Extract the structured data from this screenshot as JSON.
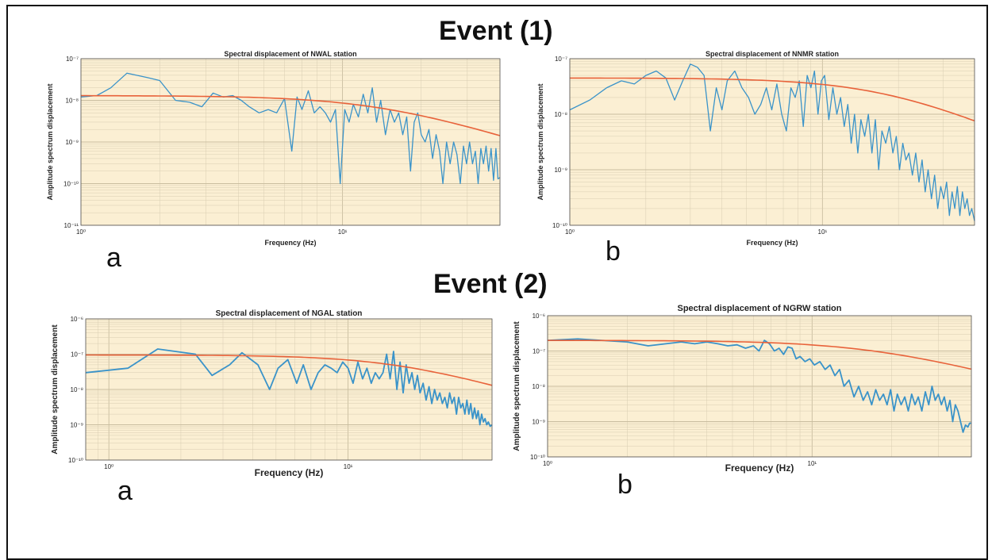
{
  "figure": {
    "event1_title": "Event (1)",
    "event2_title": "Event (2)",
    "labels": [
      "a",
      "b",
      "a",
      "b"
    ]
  },
  "colors": {
    "plot_background": "#fbefd3",
    "observed_spectrum": "#3a93c9",
    "model_fit": "#e8623a",
    "grid": "#d8cdb2"
  },
  "chart_data": [
    {
      "type": "line",
      "title": "Spectral displacement of NWAL station",
      "xlabel": "Frequency (Hz)",
      "ylabel": "Amplitude spectrum displacement",
      "xscale": "log",
      "yscale": "log",
      "xlim": [
        1,
        40
      ],
      "ylim": [
        1e-11,
        1e-07
      ],
      "xticks": [
        {
          "v": 1,
          "label": "10⁰"
        },
        {
          "v": 10,
          "label": "10¹"
        }
      ],
      "yticks": [
        {
          "v": 1e-11,
          "label": "10⁻¹¹"
        },
        {
          "v": 1e-10,
          "label": "10⁻¹⁰"
        },
        {
          "v": 1e-09,
          "label": "10⁻⁹"
        },
        {
          "v": 1e-08,
          "label": "10⁻⁸"
        },
        {
          "v": 1e-07,
          "label": "10⁻⁷"
        }
      ],
      "grid": true,
      "series": [
        {
          "role": "observed",
          "x": [
            1,
            1.15,
            1.3,
            1.5,
            1.8,
            2,
            2.3,
            2.6,
            2.9,
            3.2,
            3.5,
            3.8,
            4.1,
            4.4,
            4.8,
            5.2,
            5.6,
            6,
            6.4,
            6.7,
            7,
            7.4,
            7.8,
            8.2,
            8.6,
            9,
            9.4,
            9.8,
            10.2,
            10.6,
            11,
            11.5,
            12,
            12.5,
            13,
            13.5,
            14,
            14.6,
            15.2,
            15.8,
            16.4,
            17,
            17.6,
            18.2,
            18.8,
            19.4,
            20,
            20.7,
            21.4,
            22.1,
            22.8,
            23.5,
            24.2,
            25,
            25.8,
            26.6,
            27.4,
            28.2,
            29,
            29.8,
            30.6,
            31.4,
            32.2,
            33,
            33.8,
            34.6,
            35.4,
            36.2,
            37,
            37.8,
            38.6,
            39.3,
            40
          ],
          "y": [
            1.2e-08,
            1.3e-08,
            2e-08,
            4.5e-08,
            3.5e-08,
            3e-08,
            1e-08,
            9e-09,
            7e-09,
            1.5e-08,
            1.2e-08,
            1.3e-08,
            1e-08,
            7e-09,
            5e-09,
            6e-09,
            5e-09,
            1.1e-08,
            6e-10,
            1.2e-08,
            6e-09,
            1.7e-08,
            5e-09,
            7e-09,
            5e-09,
            3e-09,
            6e-09,
            1e-10,
            6e-09,
            3e-09,
            8e-09,
            4e-09,
            1.4e-08,
            5e-09,
            2e-08,
            3e-09,
            1e-08,
            1.5e-09,
            6e-09,
            3e-09,
            5e-09,
            1.5e-09,
            4e-09,
            2e-10,
            3e-09,
            5e-09,
            1.5e-09,
            1e-09,
            2e-09,
            4e-10,
            1.5e-09,
            6e-10,
            1e-10,
            1e-09,
            3e-10,
            1e-09,
            5e-10,
            1e-10,
            8e-10,
            3e-10,
            1e-09,
            3e-10,
            6e-10,
            1e-10,
            7e-10,
            3e-10,
            8e-10,
            2e-10,
            7e-10,
            1.2e-10,
            7e-10,
            1.3e-10,
            1.4e-10
          ]
        },
        {
          "role": "model fit",
          "omega0": 1.3e-08,
          "fc": 14,
          "xmin": 1,
          "xmax": 40
        }
      ]
    },
    {
      "type": "line",
      "title": "Spectral displacement of NNMR station",
      "xlabel": "Frequency (Hz)",
      "ylabel": "Amplitude spectrum displacement",
      "xscale": "log",
      "yscale": "log",
      "xlim": [
        1,
        40
      ],
      "ylim": [
        1e-10,
        1e-07
      ],
      "xticks": [
        {
          "v": 1,
          "label": "10⁰"
        },
        {
          "v": 10,
          "label": "10¹"
        }
      ],
      "yticks": [
        {
          "v": 1e-10,
          "label": "10⁻¹⁰"
        },
        {
          "v": 1e-09,
          "label": "10⁻⁹"
        },
        {
          "v": 1e-08,
          "label": "10⁻⁸"
        },
        {
          "v": 1e-07,
          "label": "10⁻⁷"
        }
      ],
      "grid": true,
      "series": [
        {
          "role": "observed",
          "x": [
            1,
            1.2,
            1.4,
            1.6,
            1.8,
            2,
            2.2,
            2.4,
            2.6,
            2.8,
            3,
            3.2,
            3.4,
            3.6,
            3.8,
            4,
            4.2,
            4.5,
            4.8,
            5.1,
            5.4,
            5.7,
            6,
            6.3,
            6.6,
            6.9,
            7.2,
            7.5,
            7.8,
            8.1,
            8.4,
            8.7,
            9,
            9.3,
            9.6,
            9.9,
            10.2,
            10.6,
            11,
            11.4,
            11.8,
            12.2,
            12.6,
            13,
            13.4,
            13.8,
            14.2,
            14.7,
            15.2,
            15.7,
            16.2,
            16.7,
            17.2,
            17.8,
            18.4,
            19,
            19.6,
            20.2,
            20.8,
            21.4,
            22,
            22.7,
            23.4,
            24.1,
            24.8,
            25.5,
            26.2,
            27,
            27.8,
            28.6,
            29.4,
            30.2,
            31,
            31.8,
            32.6,
            33.4,
            34.2,
            35,
            35.8,
            36.6,
            37.4,
            38.2,
            39,
            40
          ],
          "y": [
            1.2e-08,
            1.8e-08,
            3e-08,
            4e-08,
            3.5e-08,
            5e-08,
            6e-08,
            4.5e-08,
            1.8e-08,
            4e-08,
            8e-08,
            7e-08,
            5e-08,
            5e-09,
            3e-08,
            1.2e-08,
            4e-08,
            6e-08,
            3e-08,
            2e-08,
            1e-08,
            1.5e-08,
            3e-08,
            1.2e-08,
            3.5e-08,
            1e-08,
            5e-09,
            3e-08,
            2e-08,
            4e-08,
            6e-09,
            5e-08,
            3e-08,
            6e-08,
            1e-08,
            4e-08,
            5e-08,
            8e-09,
            3e-08,
            1e-08,
            2e-08,
            6e-09,
            1.5e-08,
            3e-09,
            1e-08,
            2e-09,
            8e-09,
            4e-09,
            1e-08,
            2e-09,
            8e-09,
            1e-09,
            5e-09,
            3e-09,
            6e-09,
            2e-09,
            4e-09,
            1e-09,
            3e-09,
            1.5e-09,
            2e-09,
            8e-10,
            2e-09,
            6e-10,
            1.5e-09,
            4e-10,
            1e-09,
            3e-10,
            8e-10,
            2e-10,
            5e-10,
            3e-10,
            6e-10,
            1.5e-10,
            4e-10,
            2e-10,
            5e-10,
            1.5e-10,
            4e-10,
            2e-10,
            3e-10,
            1.5e-10,
            2e-10,
            1.2e-10
          ]
        },
        {
          "role": "model fit",
          "omega0": 4.5e-08,
          "fc": 18,
          "xmin": 1,
          "xmax": 40
        }
      ]
    },
    {
      "type": "line",
      "title": "Spectral displacement of NGAL station",
      "xlabel": "Frequency (Hz)",
      "ylabel": "Amplitude spectrum displacement",
      "xscale": "log",
      "yscale": "log",
      "xlim": [
        0.8,
        40
      ],
      "ylim": [
        1e-10,
        1e-06
      ],
      "xticks": [
        {
          "v": 1,
          "label": "10⁰"
        },
        {
          "v": 10,
          "label": "10¹"
        }
      ],
      "yticks": [
        {
          "v": 1e-10,
          "label": "10⁻¹⁰"
        },
        {
          "v": 1e-09,
          "label": "10⁻⁹"
        },
        {
          "v": 1e-08,
          "label": "10⁻⁸"
        },
        {
          "v": 1e-07,
          "label": "10⁻⁷"
        },
        {
          "v": 1e-06,
          "label": "10⁻⁶"
        }
      ],
      "grid": true,
      "series": [
        {
          "role": "observed",
          "x": [
            0.8,
            1.2,
            1.6,
            2.3,
            2.7,
            3.2,
            3.6,
            4.2,
            4.7,
            5.1,
            5.6,
            6.1,
            6.5,
            7,
            7.5,
            8,
            8.5,
            9,
            9.5,
            10,
            10.5,
            11,
            11.5,
            12,
            12.5,
            13,
            13.5,
            14,
            14.5,
            15,
            15.5,
            16,
            16.5,
            17,
            17.5,
            18,
            18.5,
            19,
            19.5,
            20,
            20.6,
            21.2,
            21.8,
            22.4,
            23,
            23.6,
            24.2,
            24.8,
            25.4,
            26,
            26.6,
            27.2,
            27.8,
            28.4,
            29,
            29.6,
            30.2,
            30.8,
            31.4,
            32,
            32.6,
            33.2,
            33.8,
            34.4,
            35,
            35.6,
            36.2,
            36.8,
            37.4,
            38,
            38.6,
            39.3,
            40
          ],
          "y": [
            3e-08,
            4e-08,
            1.4e-07,
            1e-07,
            2.5e-08,
            5e-08,
            1.1e-07,
            5e-08,
            1e-08,
            4e-08,
            7e-08,
            1.5e-08,
            5e-08,
            1e-08,
            3e-08,
            5e-08,
            4e-08,
            3e-08,
            6e-08,
            4e-08,
            1.5e-08,
            6e-08,
            2e-08,
            4e-08,
            1.5e-08,
            3e-08,
            2e-08,
            3e-08,
            1e-07,
            2e-08,
            1.2e-07,
            1e-08,
            6e-08,
            8e-09,
            5e-08,
            1.5e-08,
            3e-08,
            1e-08,
            2.5e-08,
            8e-09,
            1.5e-08,
            5e-09,
            1.2e-08,
            4e-09,
            1e-08,
            5e-09,
            8e-09,
            4e-09,
            6e-09,
            3e-09,
            8e-09,
            4e-09,
            6e-09,
            2e-09,
            6e-09,
            3e-09,
            4e-09,
            2e-09,
            5e-09,
            2e-09,
            4e-09,
            1.5e-09,
            3e-09,
            1.5e-09,
            2.5e-09,
            1e-09,
            2e-09,
            1.2e-09,
            1.5e-09,
            1e-09,
            1.2e-09,
            9e-10,
            1e-09
          ]
        },
        {
          "role": "model fit",
          "omega0": 9.5e-08,
          "fc": 16,
          "xmin": 0.8,
          "xmax": 40
        }
      ]
    },
    {
      "type": "line",
      "title": "Spectral displacement of NGRW station",
      "xlabel": "Frequency (Hz)",
      "ylabel": "Amplitude spectrum displacement",
      "xscale": "log",
      "yscale": "log",
      "xlim": [
        1,
        40
      ],
      "ylim": [
        1e-10,
        1e-06
      ],
      "xticks": [
        {
          "v": 1,
          "label": "10⁰"
        },
        {
          "v": 10,
          "label": "10¹"
        }
      ],
      "yticks": [
        {
          "v": 1e-10,
          "label": "10⁻¹⁰"
        },
        {
          "v": 1e-09,
          "label": "10⁻⁹"
        },
        {
          "v": 1e-08,
          "label": "10⁻⁸"
        },
        {
          "v": 1e-07,
          "label": "10⁻⁷"
        },
        {
          "v": 1e-06,
          "label": "10⁻⁶"
        }
      ],
      "grid": true,
      "series": [
        {
          "role": "observed",
          "x": [
            1,
            1.3,
            1.6,
            2,
            2.4,
            2.8,
            3.2,
            3.6,
            4,
            4.4,
            4.8,
            5.2,
            5.6,
            6,
            6.3,
            6.6,
            6.9,
            7.2,
            7.5,
            7.8,
            8.1,
            8.4,
            8.7,
            9,
            9.4,
            9.8,
            10.2,
            10.7,
            11.2,
            11.7,
            12.2,
            12.7,
            13.2,
            13.8,
            14.4,
            15,
            15.6,
            16.2,
            16.8,
            17.4,
            18,
            18.6,
            19.2,
            19.8,
            20.4,
            21,
            21.7,
            22.4,
            23.1,
            23.8,
            24.5,
            25.2,
            26,
            26.8,
            27.6,
            28.4,
            29.2,
            30,
            30.8,
            31.6,
            32.4,
            33.2,
            34,
            34.8,
            35.6,
            36.4,
            37.2,
            38,
            38.8,
            39.4,
            40
          ],
          "y": [
            2e-07,
            2.2e-07,
            2e-07,
            1.8e-07,
            1.4e-07,
            1.6e-07,
            1.8e-07,
            1.6e-07,
            1.8e-07,
            1.6e-07,
            1.4e-07,
            1.5e-07,
            1.2e-07,
            1.4e-07,
            1e-07,
            2e-07,
            1.6e-07,
            1e-07,
            1.2e-07,
            8e-08,
            1.3e-07,
            1.2e-07,
            6e-08,
            7e-08,
            5e-08,
            6e-08,
            4e-08,
            5e-08,
            3e-08,
            4e-08,
            2e-08,
            3e-08,
            1e-08,
            1.5e-08,
            5e-09,
            1e-08,
            4e-09,
            7e-09,
            3e-09,
            8e-09,
            4e-09,
            6e-09,
            3e-09,
            8e-09,
            2e-09,
            6e-09,
            3e-09,
            5e-09,
            2e-09,
            6e-09,
            3e-09,
            5e-09,
            2e-09,
            7e-09,
            3e-09,
            1e-08,
            4e-09,
            6e-09,
            3e-09,
            5e-09,
            2e-09,
            4e-09,
            1e-09,
            3e-09,
            2e-09,
            1e-09,
            5e-10,
            8e-10,
            7e-10,
            9e-10,
            9e-10
          ]
        },
        {
          "role": "model fit",
          "omega0": 2e-07,
          "fc": 17,
          "xmin": 1,
          "xmax": 40
        }
      ]
    }
  ]
}
